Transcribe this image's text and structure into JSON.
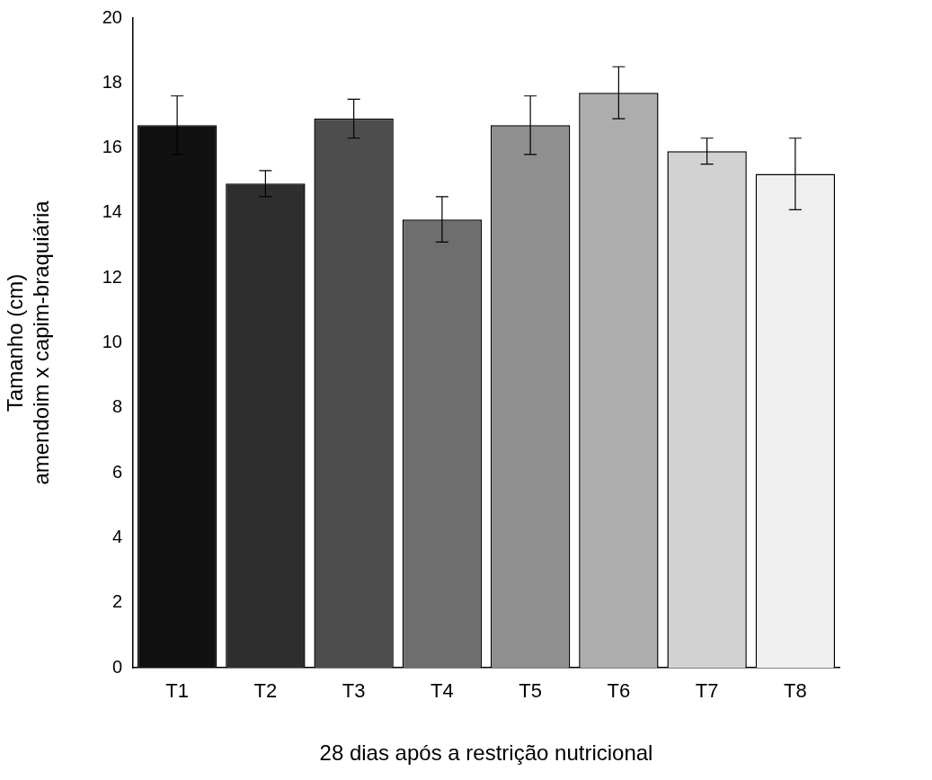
{
  "chart_data": {
    "type": "bar",
    "xlabel": "28 dias após a restrição nutricional",
    "ylabel": "Tamanho (cm)\namendoim x capim-braquiária",
    "categories": [
      "T1",
      "T2",
      "T3",
      "T4",
      "T5",
      "T6",
      "T7",
      "T8"
    ],
    "values": [
      16.7,
      14.9,
      16.9,
      13.8,
      16.7,
      17.7,
      15.9,
      15.2
    ],
    "errors": [
      0.9,
      0.4,
      0.6,
      0.7,
      0.9,
      0.8,
      0.4,
      1.1
    ],
    "colors": [
      "#111111",
      "#2e2e2e",
      "#4d4d4d",
      "#6e6e6e",
      "#8f8f8f",
      "#adadad",
      "#d2d2d2",
      "#efefef"
    ],
    "ylim": [
      0,
      20
    ],
    "yticks": [
      0,
      2,
      4,
      6,
      8,
      10,
      12,
      14,
      16,
      18,
      20
    ],
    "grid": false,
    "legend": false
  }
}
